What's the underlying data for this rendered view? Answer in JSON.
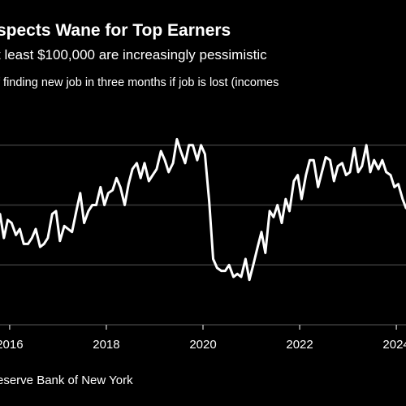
{
  "chart_data": {
    "type": "line",
    "title": "spects Wane for Top Earners",
    "subtitle": "t least $100,000 are increasingly pessimistic",
    "ylabel": "f finding new job in three months if job is lost (incomes",
    "source": "eserve Bank of New York",
    "x_tick_labels": [
      "2016",
      "2018",
      "2020",
      "2022",
      "2024"
    ],
    "x_ticks": [
      2016,
      2018,
      2020,
      2022,
      2024
    ],
    "xlim": [
      2015.8,
      2024.2
    ],
    "y_gridlines": [
      1,
      2,
      3
    ],
    "ylim": [
      0,
      4
    ],
    "grid": true,
    "series": [
      {
        "x": [
          2015.8,
          2015.88,
          2015.96,
          2016.04,
          2016.13,
          2016.21,
          2016.29,
          2016.38,
          2016.46,
          2016.54,
          2016.63,
          2016.71,
          2016.79,
          2016.88,
          2016.96,
          2017.04,
          2017.13,
          2017.21,
          2017.29,
          2017.38,
          2017.46,
          2017.54,
          2017.63,
          2017.71,
          2017.79,
          2017.88,
          2017.96,
          2018.04,
          2018.13,
          2018.21,
          2018.29,
          2018.38,
          2018.46,
          2018.54,
          2018.63,
          2018.71,
          2018.79,
          2018.88,
          2018.96,
          2019.04,
          2019.13,
          2019.21,
          2019.29,
          2019.38,
          2019.46,
          2019.54,
          2019.63,
          2019.71,
          2019.79,
          2019.88,
          2019.96,
          2020.04,
          2020.13,
          2020.21,
          2020.29,
          2020.38,
          2020.46,
          2020.54,
          2020.63,
          2020.71,
          2020.79,
          2020.88,
          2020.96,
          2021.04,
          2021.13,
          2021.21,
          2021.29,
          2021.38,
          2021.46,
          2021.54,
          2021.63,
          2021.71,
          2021.79,
          2021.88,
          2021.96,
          2022.04,
          2022.13,
          2022.21,
          2022.29,
          2022.38,
          2022.46,
          2022.54,
          2022.63,
          2022.71,
          2022.79,
          2022.88,
          2022.96,
          2023.04,
          2023.13,
          2023.21,
          2023.29,
          2023.38,
          2023.46,
          2023.54,
          2023.63,
          2023.71,
          2023.79,
          2023.88,
          2023.96,
          2024.04,
          2024.13,
          2024.2
        ],
        "values": [
          1.85,
          1.45,
          1.75,
          1.7,
          1.5,
          1.6,
          1.35,
          1.35,
          1.45,
          1.6,
          1.3,
          1.35,
          1.45,
          1.85,
          1.9,
          1.4,
          1.65,
          1.6,
          1.55,
          1.9,
          2.2,
          1.7,
          1.9,
          2.0,
          2.0,
          2.3,
          2.0,
          2.2,
          2.25,
          2.45,
          2.3,
          2.0,
          2.35,
          2.6,
          2.7,
          2.45,
          2.7,
          2.4,
          2.5,
          2.6,
          2.9,
          2.75,
          2.55,
          2.7,
          3.1,
          2.9,
          2.7,
          3.0,
          3.0,
          2.75,
          3.0,
          2.85,
          2.05,
          1.1,
          0.95,
          0.9,
          0.9,
          1.0,
          0.8,
          0.85,
          0.8,
          1.1,
          0.75,
          1.0,
          1.3,
          1.55,
          1.2,
          1.9,
          1.8,
          2.0,
          1.7,
          2.1,
          1.9,
          2.4,
          2.5,
          2.1,
          2.5,
          2.75,
          2.75,
          2.3,
          2.55,
          2.8,
          2.75,
          2.4,
          2.65,
          2.7,
          2.5,
          2.55,
          2.95,
          2.55,
          2.65,
          3.0,
          2.55,
          2.75,
          2.6,
          2.75,
          2.55,
          2.5,
          2.3,
          2.35,
          2.1,
          1.95
        ]
      }
    ]
  },
  "colors": {
    "background": "#000000",
    "line": "#ffffff",
    "grid": "#3a3a3a",
    "text": "#ffffff"
  }
}
